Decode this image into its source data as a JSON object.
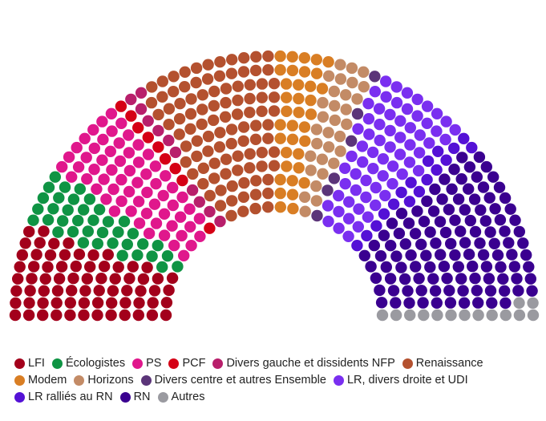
{
  "chart_data": {
    "type": "hemicycle",
    "title": "",
    "unit": "seats",
    "total_seats": 577,
    "legend_rows": [
      [
        "LFI",
        "Écologistes",
        "PS",
        "PCF",
        "Divers gauche et dissidents NFP",
        "Renaissance"
      ],
      [
        "Modem",
        "Horizons",
        "Divers centre et autres Ensemble",
        "LR, divers droite et UDI"
      ],
      [
        "LR ralliés au RN",
        "RN",
        "Autres"
      ]
    ],
    "series": [
      {
        "name": "LFI",
        "value": 71,
        "color": "#a3001b"
      },
      {
        "name": "Écologistes",
        "value": 38,
        "color": "#0f9444"
      },
      {
        "name": "PS",
        "value": 64,
        "color": "#e0178c"
      },
      {
        "name": "PCF",
        "value": 9,
        "color": "#d50015"
      },
      {
        "name": "Divers gauche et dissidents NFP",
        "value": 11,
        "color": "#b81f6b"
      },
      {
        "name": "Renaissance",
        "value": 98,
        "color": "#b4512f"
      },
      {
        "name": "Modem",
        "value": 36,
        "color": "#d97e24"
      },
      {
        "name": "Horizons",
        "value": 31,
        "color": "#c38b66"
      },
      {
        "name": "Divers centre et autres Ensemble",
        "value": 6,
        "color": "#5b3579"
      },
      {
        "name": "LR, divers droite et UDI",
        "value": 66,
        "color": "#7a2ff0"
      },
      {
        "name": "LR ralliés au RN",
        "value": 17,
        "color": "#5411d6"
      },
      {
        "name": "RN",
        "value": 116,
        "color": "#3a0090"
      },
      {
        "name": "Autres",
        "value": 14,
        "color": "#9a9aa0"
      }
    ]
  }
}
